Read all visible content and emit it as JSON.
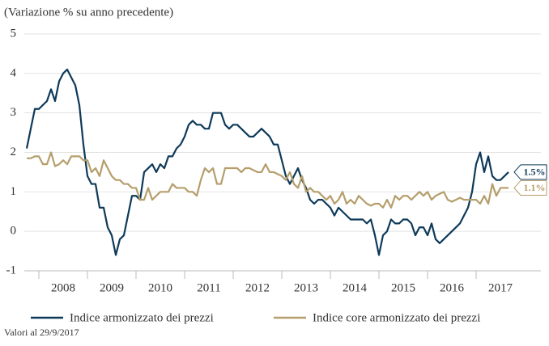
{
  "chart_data": {
    "type": "line",
    "title": "(Variazione % su anno precedente)",
    "footnote": "Valori al 29/9/2017",
    "categories": [
      null,
      null,
      null,
      null,
      null,
      null,
      null,
      null,
      null,
      "2008",
      null,
      null,
      null,
      null,
      null,
      null,
      null,
      null,
      null,
      null,
      null,
      "2009",
      null,
      null,
      null,
      null,
      null,
      null,
      null,
      null,
      null,
      null,
      null,
      "2010",
      null,
      null,
      null,
      null,
      null,
      null,
      null,
      null,
      null,
      null,
      null,
      "2011",
      null,
      null,
      null,
      null,
      null,
      null,
      null,
      null,
      null,
      null,
      null,
      "2012",
      null,
      null,
      null,
      null,
      null,
      null,
      null,
      null,
      null,
      null,
      null,
      "2013",
      null,
      null,
      null,
      null,
      null,
      null,
      null,
      null,
      null,
      null,
      null,
      "2014",
      null,
      null,
      null,
      null,
      null,
      null,
      null,
      null,
      null,
      null,
      null,
      "2015",
      null,
      null,
      null,
      null,
      null,
      null,
      null,
      null,
      null,
      null,
      null,
      "2016",
      null,
      null,
      null,
      null,
      null,
      null,
      null,
      null,
      null,
      null,
      null,
      "2017",
      null,
      null
    ],
    "ylim": [
      -1,
      5
    ],
    "yticks": [
      -1,
      0,
      1,
      2,
      3,
      4,
      5
    ],
    "grid": true,
    "series": [
      {
        "name": "Indice armonizzato dei prezzi",
        "color": "#0e3a5a",
        "values": [
          2.1,
          2.6,
          3.1,
          3.1,
          3.2,
          3.3,
          3.6,
          3.3,
          3.8,
          4.0,
          4.1,
          3.9,
          3.7,
          3.2,
          2.2,
          1.4,
          1.2,
          1.2,
          0.6,
          0.6,
          0.1,
          -0.1,
          -0.6,
          -0.2,
          -0.1,
          0.4,
          0.9,
          0.9,
          0.8,
          1.5,
          1.6,
          1.7,
          1.5,
          1.7,
          1.6,
          1.9,
          1.9,
          2.1,
          2.2,
          2.4,
          2.7,
          2.8,
          2.7,
          2.7,
          2.6,
          2.6,
          3.0,
          3.0,
          3.0,
          2.7,
          2.6,
          2.7,
          2.7,
          2.6,
          2.5,
          2.4,
          2.4,
          2.5,
          2.6,
          2.5,
          2.4,
          2.2,
          2.2,
          1.8,
          1.4,
          1.2,
          1.4,
          1.6,
          1.3,
          1.1,
          0.8,
          0.7,
          0.8,
          0.8,
          0.7,
          0.6,
          0.4,
          0.6,
          0.5,
          0.4,
          0.3,
          0.3,
          0.3,
          0.3,
          0.2,
          0.3,
          -0.1,
          -0.6,
          -0.1,
          0.0,
          0.3,
          0.2,
          0.2,
          0.3,
          0.3,
          0.2,
          -0.1,
          0.1,
          0.1,
          -0.1,
          0.2,
          -0.2,
          -0.3,
          -0.2,
          -0.1,
          0.0,
          0.1,
          0.2,
          0.4,
          0.6,
          1.0,
          1.7,
          2.0,
          1.5,
          1.9,
          1.4,
          1.3,
          1.3,
          1.4,
          1.5
        ],
        "value_labels": [
          null,
          null,
          null,
          null,
          null,
          null,
          null,
          null,
          null,
          null,
          null,
          null,
          null,
          null,
          null,
          null,
          null,
          null,
          null,
          null,
          null,
          null,
          null,
          null,
          null,
          null,
          null,
          null,
          null,
          null,
          null,
          null,
          null,
          null,
          null,
          null,
          null,
          null,
          null,
          null,
          null,
          null,
          null,
          null,
          null,
          null,
          null,
          null,
          null,
          null,
          null,
          null,
          null,
          null,
          null,
          null,
          null,
          null,
          null,
          null,
          null,
          null,
          null,
          null,
          null,
          null,
          null,
          null,
          null,
          null,
          null,
          null,
          null,
          null,
          null,
          null,
          null,
          null,
          null,
          null,
          null,
          null,
          null,
          null,
          null,
          null,
          null,
          null,
          null,
          null,
          null,
          null,
          null,
          null,
          null,
          null,
          null,
          null,
          null,
          null,
          null,
          null,
          null,
          null,
          null,
          null,
          null,
          null,
          null,
          null,
          null,
          null,
          null,
          null,
          null,
          null,
          null,
          null,
          null,
          "1.5%"
        ]
      },
      {
        "name": "Indice core armonizzato dei prezzi",
        "color": "#b59e6b",
        "values": [
          1.85,
          1.85,
          1.9,
          1.9,
          1.7,
          1.7,
          2.0,
          1.65,
          1.7,
          1.8,
          1.7,
          1.9,
          1.9,
          1.9,
          1.8,
          1.8,
          1.5,
          1.6,
          1.4,
          1.8,
          1.6,
          1.4,
          1.3,
          1.3,
          1.2,
          1.2,
          1.1,
          1.1,
          0.8,
          0.8,
          1.1,
          0.8,
          0.9,
          1.0,
          1.0,
          1.0,
          1.2,
          1.1,
          1.1,
          1.1,
          1.0,
          1.0,
          0.9,
          1.3,
          1.6,
          1.5,
          1.6,
          1.2,
          1.2,
          1.6,
          1.6,
          1.6,
          1.6,
          1.5,
          1.6,
          1.6,
          1.55,
          1.5,
          1.5,
          1.7,
          1.5,
          1.5,
          1.45,
          1.4,
          1.3,
          1.5,
          1.2,
          1.1,
          1.4,
          1.0,
          1.1,
          1.0,
          1.0,
          0.9,
          0.8,
          0.9,
          0.7,
          0.8,
          1.0,
          0.7,
          0.8,
          0.7,
          0.9,
          0.8,
          0.7,
          0.65,
          0.7,
          0.7,
          0.6,
          0.8,
          0.6,
          0.9,
          0.8,
          0.9,
          0.9,
          0.8,
          0.9,
          1.0,
          0.9,
          1.0,
          0.8,
          0.9,
          0.95,
          1.0,
          0.8,
          0.75,
          0.8,
          0.85,
          0.8,
          0.8,
          0.8,
          0.8,
          0.7,
          0.9,
          0.7,
          1.2,
          0.9,
          1.1,
          1.1,
          1.1
        ],
        "value_labels": [
          null,
          null,
          null,
          null,
          null,
          null,
          null,
          null,
          null,
          null,
          null,
          null,
          null,
          null,
          null,
          null,
          null,
          null,
          null,
          null,
          null,
          null,
          null,
          null,
          null,
          null,
          null,
          null,
          null,
          null,
          null,
          null,
          null,
          null,
          null,
          null,
          null,
          null,
          null,
          null,
          null,
          null,
          null,
          null,
          null,
          null,
          null,
          null,
          null,
          null,
          null,
          null,
          null,
          null,
          null,
          null,
          null,
          null,
          null,
          null,
          null,
          null,
          null,
          null,
          null,
          null,
          null,
          null,
          null,
          null,
          null,
          null,
          null,
          null,
          null,
          null,
          null,
          null,
          null,
          null,
          null,
          null,
          null,
          null,
          null,
          null,
          null,
          null,
          null,
          null,
          null,
          null,
          null,
          null,
          null,
          null,
          null,
          null,
          null,
          null,
          null,
          null,
          null,
          null,
          null,
          null,
          null,
          null,
          null,
          null,
          null,
          null,
          null,
          null,
          null,
          null,
          null,
          null,
          null,
          "1.1%"
        ]
      }
    ]
  }
}
